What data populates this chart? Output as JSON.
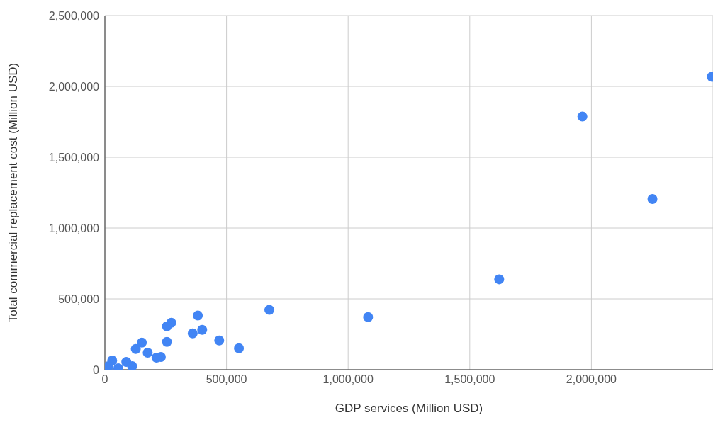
{
  "chart_data": {
    "type": "scatter",
    "xlabel": "GDP services (Million USD)",
    "ylabel": "Total commercial replacement cost (Million USD)",
    "xlim": [
      0,
      2500000
    ],
    "xticks": [
      0,
      {
        "value": 500000,
        "label": "500,000"
      },
      {
        "value": 1000000,
        "label": "1,000,000"
      },
      {
        "value": 1500000,
        "label": "1,500,000"
      },
      {
        "value": 2000000,
        "label": "2,000,000"
      }
    ],
    "ylim": [
      0,
      2500000
    ],
    "yticks": [
      0,
      {
        "value": 500000,
        "label": "500,000"
      },
      {
        "value": 1000000,
        "label": "1,000,000"
      },
      {
        "value": 1500000,
        "label": "1,500,000"
      },
      {
        "value": 2000000,
        "label": "2,000,000"
      },
      {
        "value": 2500000,
        "label": "2,500,000"
      }
    ],
    "grid": true,
    "marker": "circle",
    "series": [
      {
        "color": "#4285f4",
        "x": [
          2495000,
          1963000,
          2251000,
          1621000,
          1082000,
          676000,
          551000,
          470000,
          382000,
          400000,
          361000,
          273000,
          255000,
          255000,
          152000,
          127000,
          176000,
          230000,
          212000,
          88000,
          112000,
          30000,
          15000,
          55000
        ],
        "values": [
          2068000,
          1787000,
          1205000,
          638000,
          371000,
          422000,
          151000,
          206000,
          382000,
          281000,
          256000,
          331000,
          306000,
          196000,
          191000,
          146000,
          120000,
          90000,
          85000,
          55000,
          25000,
          65000,
          25000,
          10000
        ]
      }
    ]
  }
}
